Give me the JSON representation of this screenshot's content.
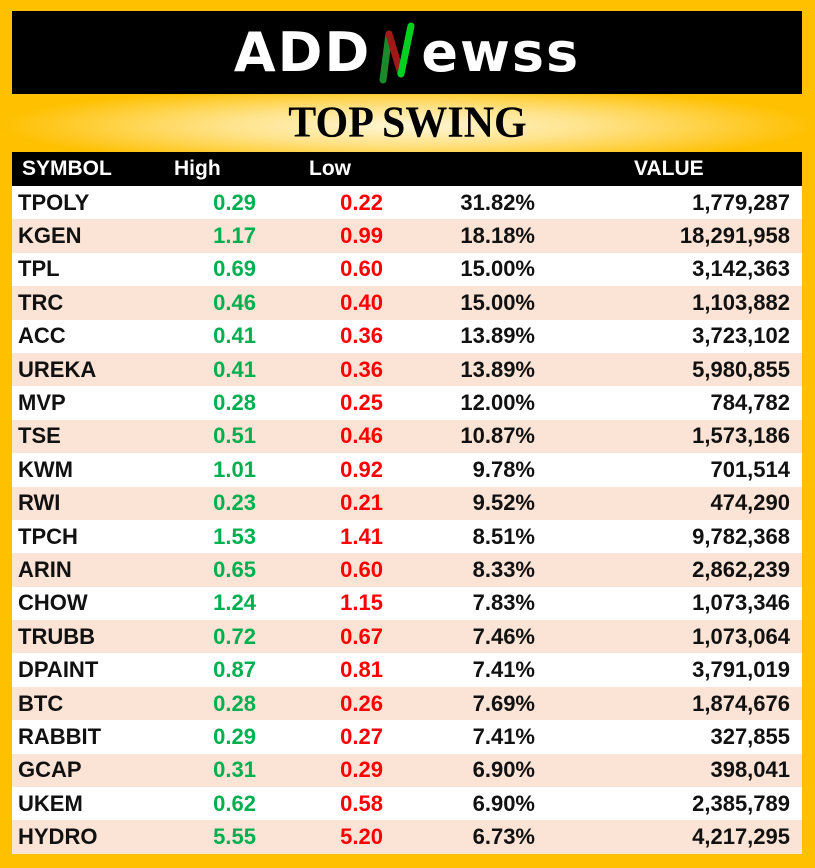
{
  "brand": {
    "logo_text": "ADDNewss",
    "logo_left": "ADD",
    "logo_right": "ewss",
    "accent_green": "#00c020",
    "accent_red": "#c00000"
  },
  "title": "TOP SWING",
  "columns": {
    "symbol": "SYMBOL",
    "high": "High",
    "low": "Low",
    "change": "",
    "value": "VALUE"
  },
  "colors": {
    "high": "#00b050",
    "low": "#ff0000",
    "row_alt": "#fbe3d6",
    "frame": "#ffc000"
  },
  "rows": [
    {
      "symbol": "TPOLY",
      "high": "0.29",
      "low": "0.22",
      "change": "31.82%",
      "value": "1,779,287"
    },
    {
      "symbol": "KGEN",
      "high": "1.17",
      "low": "0.99",
      "change": "18.18%",
      "value": "18,291,958"
    },
    {
      "symbol": "TPL",
      "high": "0.69",
      "low": "0.60",
      "change": "15.00%",
      "value": "3,142,363"
    },
    {
      "symbol": "TRC",
      "high": "0.46",
      "low": "0.40",
      "change": "15.00%",
      "value": "1,103,882"
    },
    {
      "symbol": "ACC",
      "high": "0.41",
      "low": "0.36",
      "change": "13.89%",
      "value": "3,723,102"
    },
    {
      "symbol": "UREKA",
      "high": "0.41",
      "low": "0.36",
      "change": "13.89%",
      "value": "5,980,855"
    },
    {
      "symbol": "MVP",
      "high": "0.28",
      "low": "0.25",
      "change": "12.00%",
      "value": "784,782"
    },
    {
      "symbol": "TSE",
      "high": "0.51",
      "low": "0.46",
      "change": "10.87%",
      "value": "1,573,186"
    },
    {
      "symbol": "KWM",
      "high": "1.01",
      "low": "0.92",
      "change": "9.78%",
      "value": "701,514"
    },
    {
      "symbol": "RWI",
      "high": "0.23",
      "low": "0.21",
      "change": "9.52%",
      "value": "474,290"
    },
    {
      "symbol": "TPCH",
      "high": "1.53",
      "low": "1.41",
      "change": "8.51%",
      "value": "9,782,368"
    },
    {
      "symbol": "ARIN",
      "high": "0.65",
      "low": "0.60",
      "change": "8.33%",
      "value": "2,862,239"
    },
    {
      "symbol": "CHOW",
      "high": "1.24",
      "low": "1.15",
      "change": "7.83%",
      "value": "1,073,346"
    },
    {
      "symbol": "TRUBB",
      "high": "0.72",
      "low": "0.67",
      "change": "7.46%",
      "value": "1,073,064"
    },
    {
      "symbol": "DPAINT",
      "high": "0.87",
      "low": "0.81",
      "change": "7.41%",
      "value": "3,791,019"
    },
    {
      "symbol": "BTC",
      "high": "0.28",
      "low": "0.26",
      "change": "7.69%",
      "value": "1,874,676"
    },
    {
      "symbol": "RABBIT",
      "high": "0.29",
      "low": "0.27",
      "change": "7.41%",
      "value": "327,855"
    },
    {
      "symbol": "GCAP",
      "high": "0.31",
      "low": "0.29",
      "change": "6.90%",
      "value": "398,041"
    },
    {
      "symbol": "UKEM",
      "high": "0.62",
      "low": "0.58",
      "change": "6.90%",
      "value": "2,385,789"
    },
    {
      "symbol": "HYDRO",
      "high": "5.55",
      "low": "5.20",
      "change": "6.73%",
      "value": "4,217,295"
    }
  ]
}
